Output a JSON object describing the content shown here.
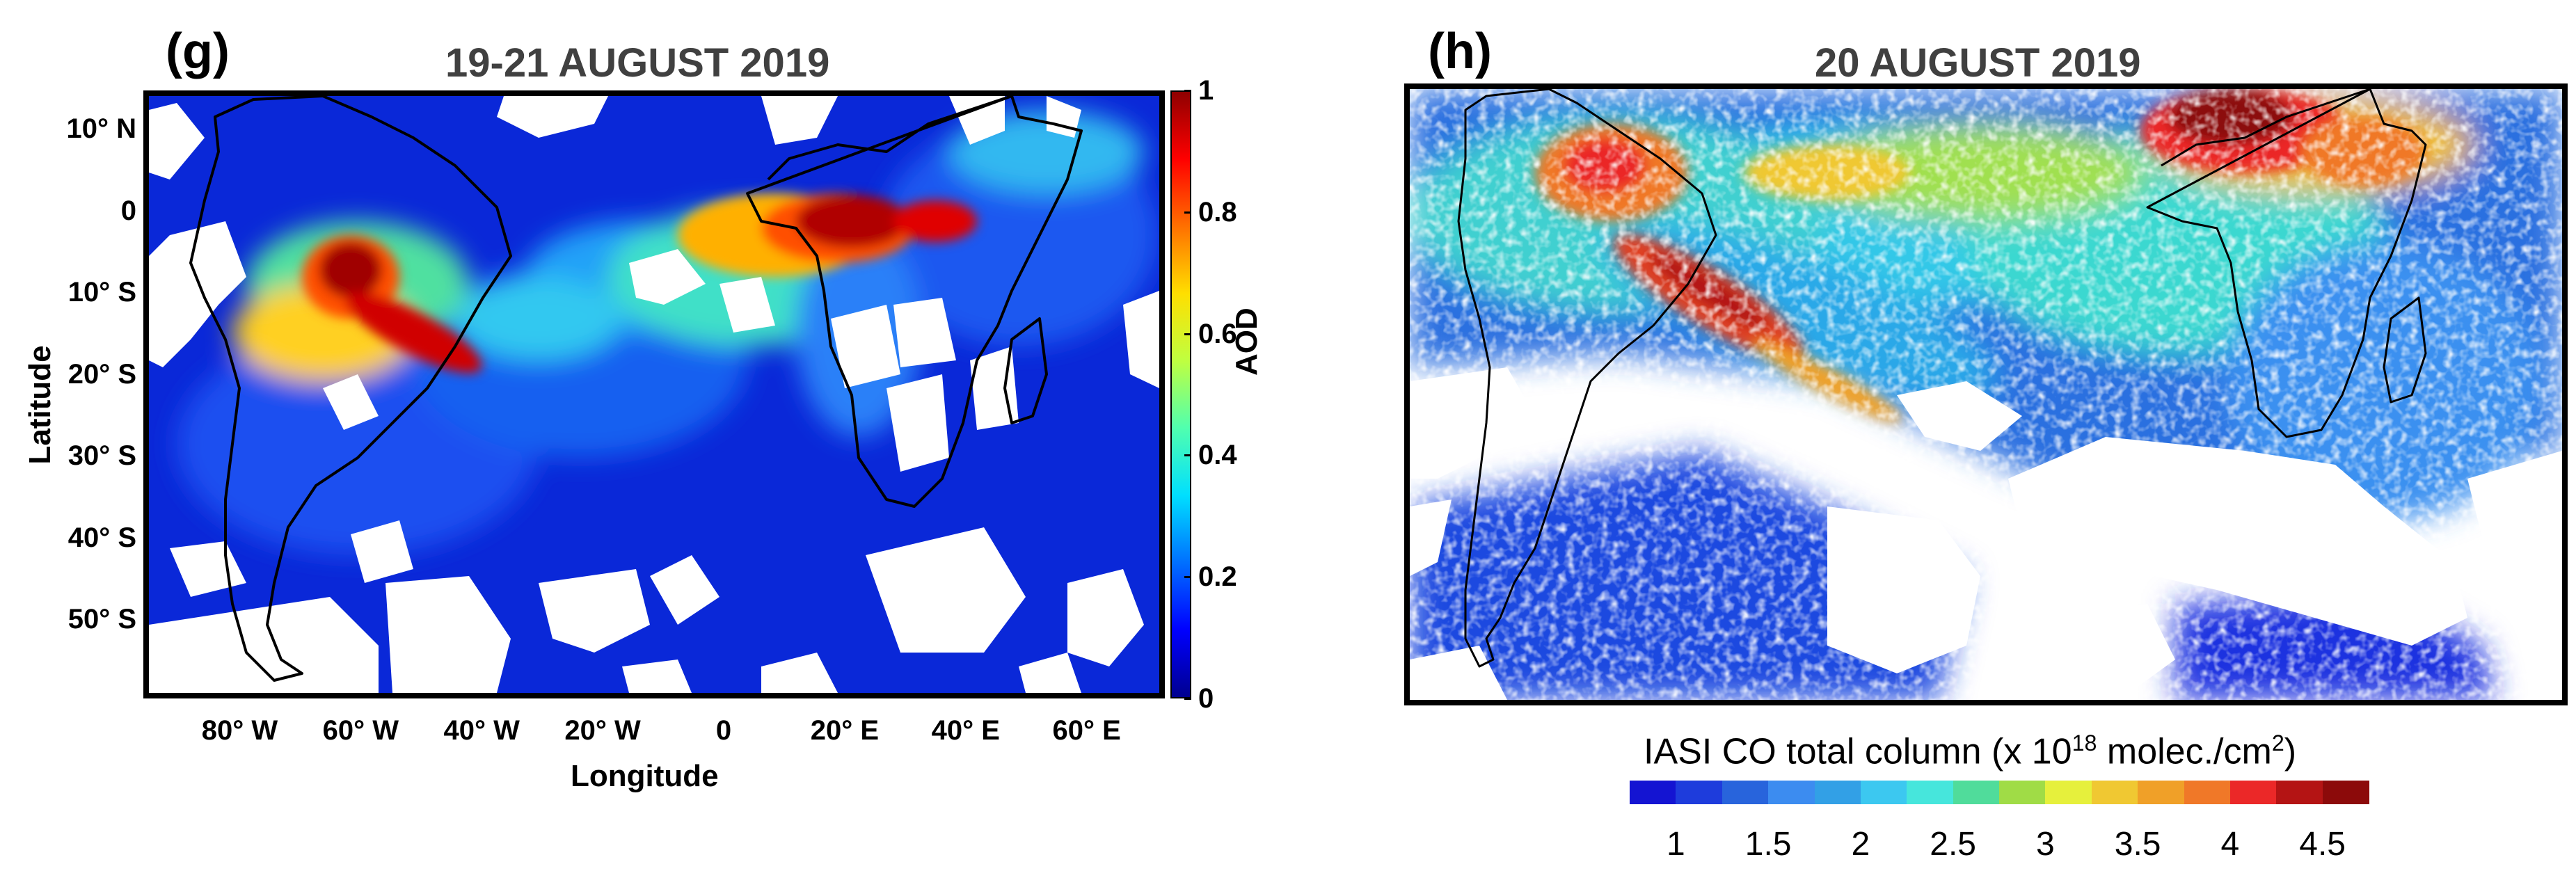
{
  "panel_g": {
    "label": "(g)",
    "title": "19-21 AUGUST 2019",
    "x_axis_title": "Longitude",
    "y_axis_title": "Latitude",
    "lat_ticks": [
      {
        "text": "10° N",
        "lat": 10
      },
      {
        "text": "0",
        "lat": 0
      },
      {
        "text": "10° S",
        "lat": -10
      },
      {
        "text": "20° S",
        "lat": -20
      },
      {
        "text": "30° S",
        "lat": -30
      },
      {
        "text": "40° S",
        "lat": -40
      },
      {
        "text": "50° S",
        "lat": -50
      }
    ],
    "lon_ticks": [
      {
        "text": "80° W",
        "lon": -80
      },
      {
        "text": "60° W",
        "lon": -60
      },
      {
        "text": "40° W",
        "lon": -40
      },
      {
        "text": "20° W",
        "lon": -20
      },
      {
        "text": "0",
        "lon": 0
      },
      {
        "text": "20° E",
        "lon": 20
      },
      {
        "text": "40° E",
        "lon": 40
      },
      {
        "text": "60° E",
        "lon": 60
      }
    ],
    "extent": {
      "lon_min": -95,
      "lon_max": 72,
      "lat_min": -59,
      "lat_max": 14
    },
    "colorbar": {
      "title": "AOD",
      "min": 0,
      "max": 1,
      "ticks": [
        "0",
        "0.2",
        "0.4",
        "0.6",
        "0.8",
        "1"
      ],
      "colors": [
        "#00008f",
        "#0000ff",
        "#0070ff",
        "#00dfff",
        "#50ffaf",
        "#bfff40",
        "#ffdf00",
        "#ff7000",
        "#ff0000",
        "#8f0000"
      ]
    }
  },
  "panel_h": {
    "label": "(h)",
    "title": "20 AUGUST 2019",
    "colorbar": {
      "title_prefix": "IASI CO total column (x 10",
      "title_exponent": "18",
      "title_middle": " molec./cm",
      "title_exp2": "2",
      "title_suffix": ")",
      "ticks": [
        "1",
        "1.5",
        "2",
        "2.5",
        "3",
        "3.5",
        "4",
        "4.5"
      ],
      "colors": [
        "#1414d2",
        "#1e3cdc",
        "#2864dc",
        "#3c8cf0",
        "#32a0e6",
        "#3cc8f0",
        "#46e6dc",
        "#50dc9b",
        "#a0dc46",
        "#e6f03c",
        "#f0c832",
        "#f0a028",
        "#f07828",
        "#eb2828",
        "#b41414",
        "#8c0a0a"
      ]
    }
  }
}
